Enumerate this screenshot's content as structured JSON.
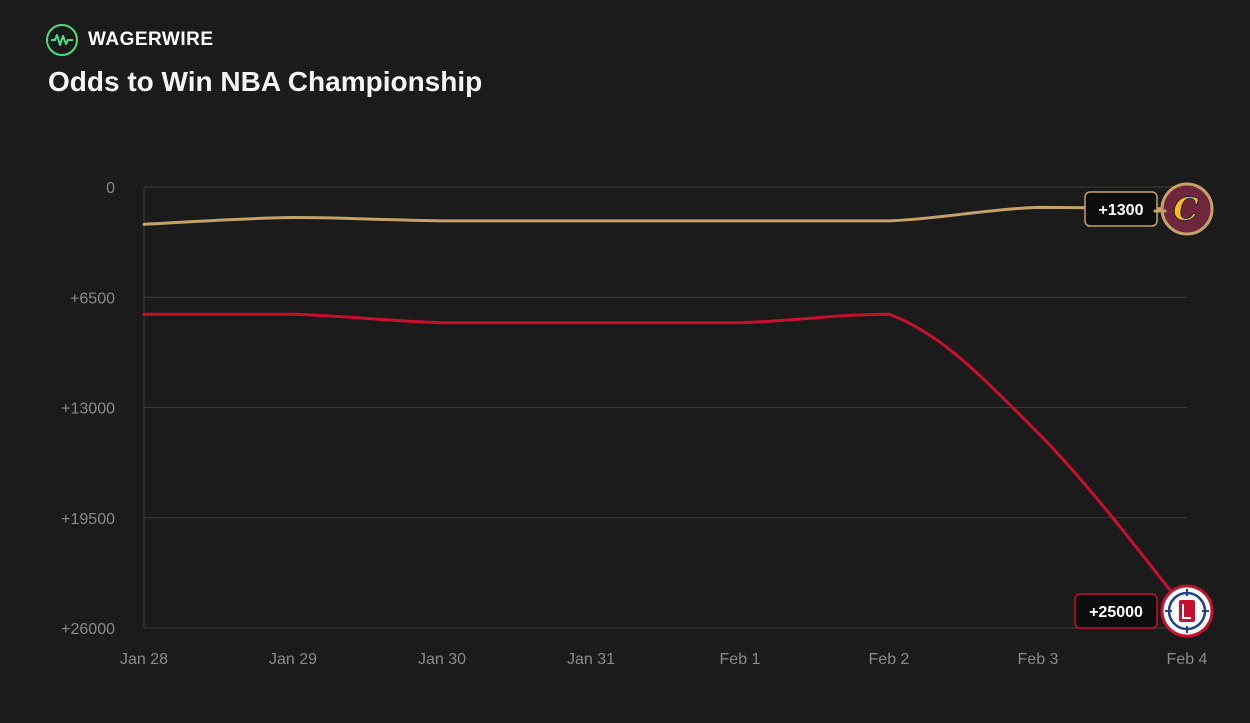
{
  "brand": {
    "name": "WAGERWIRE",
    "icon": "pulse-wave-icon"
  },
  "chart_data": {
    "type": "line",
    "title": "Odds to Win NBA Championship",
    "x": [
      "Jan 28",
      "Jan 29",
      "Jan 30",
      "Jan 31",
      "Feb 1",
      "Feb 2",
      "Feb 3",
      "Feb 4"
    ],
    "y_ticks": [
      "0",
      "+6500",
      "+13000",
      "+19500",
      "+26000"
    ],
    "ylim": [
      0,
      26000
    ],
    "y_inverted": true,
    "grid": true,
    "series": [
      {
        "team": "Cleveland Cavaliers",
        "logo": "cavaliers-logo-icon",
        "color": "#c6a26a",
        "values": [
          2200,
          1800,
          2000,
          2000,
          2000,
          2000,
          1200,
          1300
        ],
        "end_label": "+1300"
      },
      {
        "team": "LA Clippers",
        "logo": "clippers-logo-icon",
        "color": "#c8102e",
        "values": [
          7500,
          7500,
          8000,
          8000,
          8000,
          7500,
          14500,
          25000
        ],
        "end_label": "+25000"
      }
    ]
  }
}
